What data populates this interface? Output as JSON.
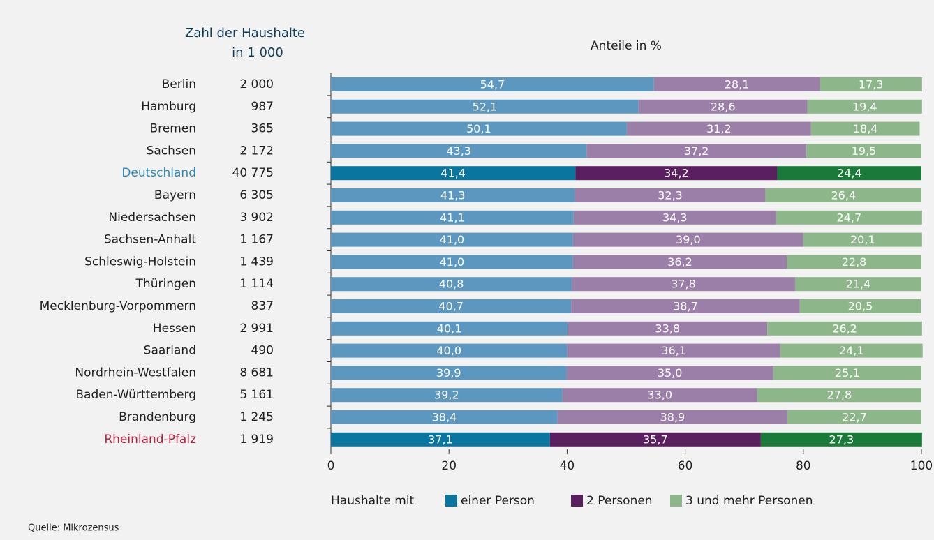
{
  "chart_data": {
    "type": "stacked_barh",
    "households_header": [
      "Zahl der Haushalte",
      "in 1 000"
    ],
    "subtitle": "Anteile in %",
    "categories": [
      "Berlin",
      "Hamburg",
      "Bremen",
      "Sachsen",
      "Deutschland",
      "Bayern",
      "Niedersachsen",
      "Sachsen-Anhalt",
      "Schleswig-Holstein",
      "Thüringen",
      "Mecklenburg-Vorpommern",
      "Hessen",
      "Saarland",
      "Nordrhein-Westfalen",
      "Baden-Württemberg",
      "Brandenburg",
      "Rheinland-Pfalz"
    ],
    "category_colors": [
      "#1f1f1f",
      "#1f1f1f",
      "#1f1f1f",
      "#1f1f1f",
      "#2a8ab8",
      "#1f1f1f",
      "#1f1f1f",
      "#1f1f1f",
      "#1f1f1f",
      "#1f1f1f",
      "#1f1f1f",
      "#1f1f1f",
      "#1f1f1f",
      "#1f1f1f",
      "#1f1f1f",
      "#1f1f1f",
      "#b0203f"
    ],
    "highlight": [
      false,
      false,
      false,
      false,
      true,
      false,
      false,
      false,
      false,
      false,
      false,
      false,
      false,
      false,
      false,
      false,
      true
    ],
    "households": [
      "2 000",
      "987",
      "365",
      "2 172",
      "40 775",
      "6 305",
      "3 902",
      "1 167",
      "1 439",
      "1 114",
      "837",
      "2 991",
      "490",
      "8 681",
      "5 161",
      "1 245",
      "1 919"
    ],
    "series": [
      {
        "name": "einer Person",
        "color": "#5b97bf",
        "highlight_color": "#0a76a0",
        "legend_color": "#0a76a0",
        "values": [
          54.7,
          52.1,
          50.1,
          43.3,
          41.4,
          41.3,
          41.1,
          41.0,
          41.0,
          40.8,
          40.7,
          40.1,
          40.0,
          39.9,
          39.2,
          38.4,
          37.1
        ],
        "value_labels": [
          "54,7",
          "52,1",
          "50,1",
          "43,3",
          "41,4",
          "41,3",
          "41,1",
          "41,0",
          "41,0",
          "40,8",
          "40,7",
          "40,1",
          "40,0",
          "39,9",
          "39,2",
          "38,4",
          "37,1"
        ]
      },
      {
        "name": "2 Personen",
        "color": "#9b7fa8",
        "highlight_color": "#5a1f5e",
        "legend_color": "#5a1f5e",
        "values": [
          28.1,
          28.6,
          31.2,
          37.2,
          34.2,
          32.3,
          34.3,
          39.0,
          36.2,
          37.8,
          38.7,
          33.8,
          36.1,
          35.0,
          33.0,
          38.9,
          35.7
        ],
        "value_labels": [
          "28,1",
          "28,6",
          "31,2",
          "37,2",
          "34,2",
          "32,3",
          "34,3",
          "39,0",
          "36,2",
          "37,8",
          "38,7",
          "33,8",
          "36,1",
          "35,0",
          "33,0",
          "38,9",
          "35,7"
        ]
      },
      {
        "name": "3 und mehr Personen",
        "color": "#8db68a",
        "highlight_color": "#1a7a3a",
        "legend_color": "#8db68a",
        "values": [
          17.3,
          19.4,
          18.4,
          19.5,
          24.4,
          26.4,
          24.7,
          20.1,
          22.8,
          21.4,
          20.5,
          26.2,
          24.1,
          25.1,
          27.8,
          22.7,
          27.3
        ],
        "value_labels": [
          "17,3",
          "19,4",
          "18,4",
          "19,5",
          "24,4",
          "26,4",
          "24,7",
          "20,1",
          "22,8",
          "21,4",
          "20,5",
          "26,2",
          "24,1",
          "25,1",
          "27,8",
          "22,7",
          "27,3"
        ]
      }
    ],
    "xlim": [
      0,
      100
    ],
    "xticks": [
      0,
      20,
      40,
      60,
      80,
      100
    ],
    "legend_title": "Haushalte mit",
    "source": "Quelle: Mikrozensus"
  }
}
